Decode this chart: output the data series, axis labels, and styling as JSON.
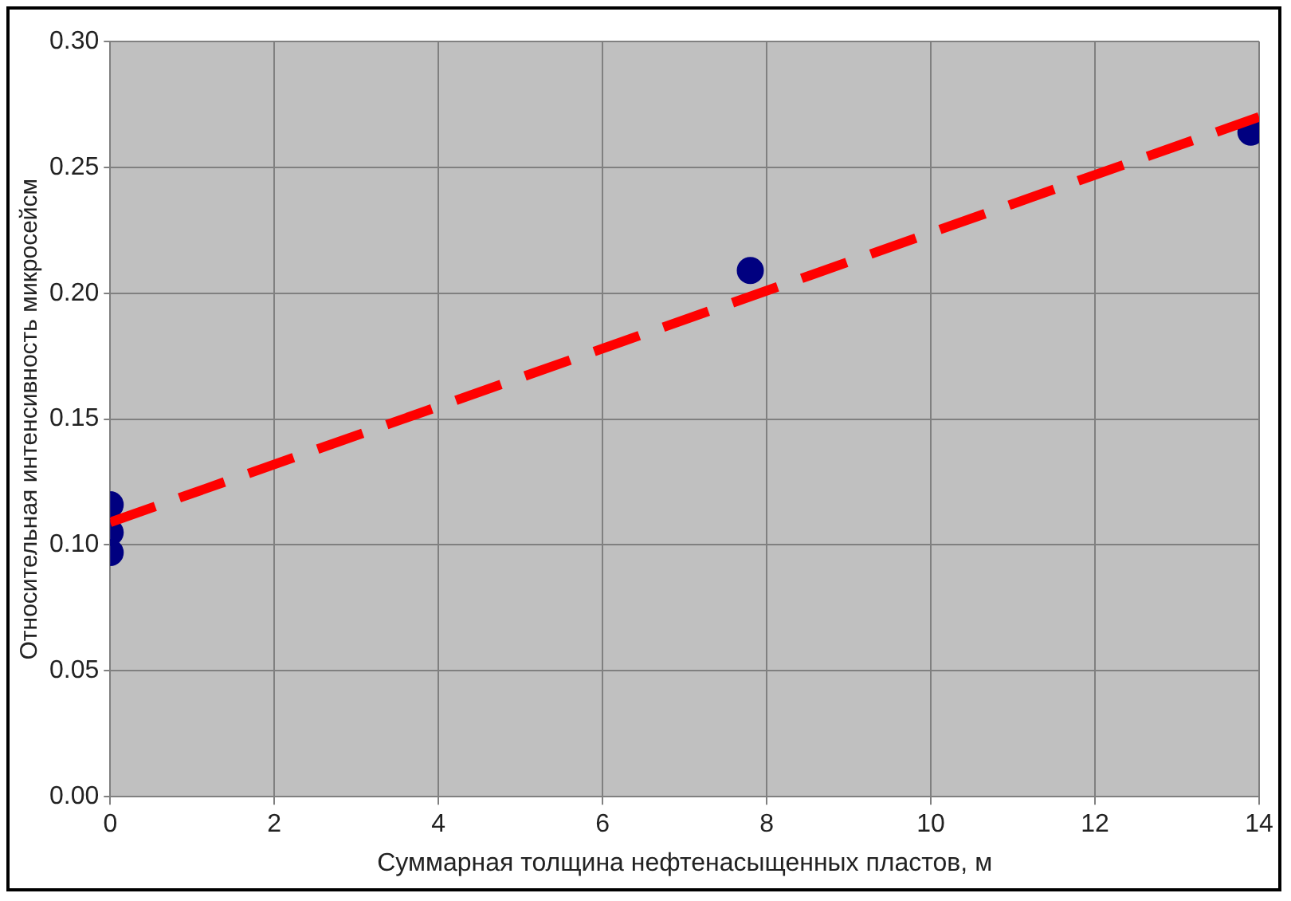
{
  "chart_data": {
    "type": "scatter",
    "xlabel": "Суммарная толщина нефтенасыщенных пластов, м",
    "ylabel": "Относительная интенсивность микросейсм",
    "xlim": [
      0,
      14
    ],
    "xticks": [
      0,
      2,
      4,
      6,
      8,
      10,
      12,
      14
    ],
    "ylim": [
      0,
      0.3
    ],
    "yticks": [
      {
        "value": 0,
        "label": "0.00"
      },
      0.05,
      {
        "value": 0.1,
        "label": "0.10"
      },
      0.15,
      {
        "value": 0.2,
        "label": "0.20"
      },
      0.25,
      {
        "value": 0.3,
        "label": "0.30"
      }
    ],
    "grid": true,
    "legend": false,
    "marker": "circle",
    "series": [
      {
        "type": "scatter",
        "color": "#000080",
        "x": [
          0,
          0,
          0,
          7.8,
          13.9
        ],
        "values": [
          0.116,
          0.105,
          0.097,
          0.209,
          0.264
        ]
      },
      {
        "type": "line",
        "color": "#ff0000",
        "line_style": "dashed",
        "marker": "none",
        "x": [
          0,
          14
        ],
        "values": [
          0.109,
          0.27
        ]
      }
    ]
  }
}
